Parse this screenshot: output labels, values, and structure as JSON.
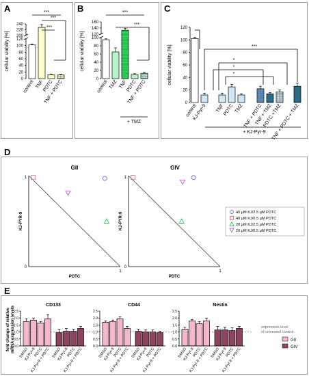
{
  "colors": {
    "panel_border": "#9a9a9a",
    "axis": "#000000",
    "control": "#ffffff",
    "tnf": "#ffffcc",
    "pdtc": "#ffffcc",
    "tnf_pdtc": "#ffffcc",
    "tmz": "#b7f5c8",
    "tnf_tmz": "#2fd65a",
    "pdtc_tmz": "#b7f5c8",
    "tnf_pdtc_tmz": "#b7f5c8",
    "kj_light": "#cfe6f5",
    "kj_mid": "#5b9bd5",
    "kj_dark": "#2c6b86",
    "gii": "#f4b7cc",
    "giv": "#8e4460",
    "scatter_40_2_5": "#6b6bd6",
    "scatter_40_0_5": "#ef6b6b",
    "scatter_20_2_5": "#2bc45a",
    "scatter_20_0_5": "#c85ad6"
  },
  "panel_labels": {
    "A": "A",
    "B": "B",
    "C": "C",
    "D": "D",
    "E": "E"
  },
  "ylabel_viability": "cellular viability [%]",
  "panel_b_group": "+ TMZ",
  "panel_c_group": "+ KJ-Pyr-9",
  "sig": {
    "three": "***",
    "one": "*"
  },
  "chart_data": [
    {
      "id": "A",
      "type": "bar",
      "ylabel": "cellular viability [%]",
      "axis_break": true,
      "yticks_low": [
        "0",
        "20",
        "40",
        "60",
        "80",
        "100",
        "120"
      ],
      "yticks_high": [
        "200",
        "220",
        "240"
      ],
      "categories": [
        "control",
        "TNF",
        "PDTC",
        "TNF + PDTC"
      ],
      "values": [
        102,
        228,
        12,
        11
      ],
      "errors": [
        3,
        10,
        2,
        2
      ],
      "significance": [
        "***",
        "***",
        "***"
      ]
    },
    {
      "id": "B",
      "type": "bar",
      "ylabel": "cellular viability [%]",
      "axis_break": true,
      "yticks_low": [
        "0",
        "20",
        "40",
        "60",
        "80",
        "100"
      ],
      "yticks_high": [
        "120",
        "140",
        "160"
      ],
      "categories": [
        "control",
        "TMZ",
        "TNF",
        "PDTC",
        "TNF + PDTC"
      ],
      "group_label": "+ TMZ",
      "values": [
        102,
        65,
        133,
        10,
        13
      ],
      "errors": [
        3,
        10,
        6,
        2,
        2
      ],
      "significance": [
        "***",
        "***"
      ]
    },
    {
      "id": "C",
      "type": "bar",
      "ylabel": "cellular viability [%]",
      "yticks": [
        "0",
        "20",
        "40",
        "60",
        "80",
        "100",
        "120"
      ],
      "ylim": [
        0,
        120
      ],
      "categories": [
        "control",
        "KJ-Pyr-9",
        "TNF",
        "PDTC",
        "TMZ",
        "TNF + PDTC",
        "TNF + TMZ",
        "PDTC +TMZ",
        "TNF + PDTC + TMZ"
      ],
      "group_label": "+ KJ-Pyr-9",
      "values": [
        102,
        12,
        12,
        25,
        12,
        22,
        14,
        17,
        26
      ],
      "errors": [
        2,
        3,
        3,
        4,
        2,
        4,
        2,
        3,
        5
      ],
      "significance": [
        "*",
        "*",
        "*",
        "***"
      ]
    },
    {
      "id": "D",
      "type": "scatter",
      "plots": [
        {
          "title": "GII",
          "xlabel": "PDTC",
          "ylabel": "KJ-PYR-9",
          "xlim": [
            0,
            1
          ],
          "ylim": [
            0,
            1
          ],
          "points": [
            {
              "x": 0.83,
              "y": 0.97
            },
            {
              "x": 0.05,
              "y": 0.98
            },
            {
              "x": 0.85,
              "y": 0.5
            },
            {
              "x": 0.43,
              "y": 0.81
            }
          ]
        },
        {
          "title": "GIV",
          "xlabel": "PDTC",
          "ylabel": "KJ-PYR-9",
          "xlim": [
            0,
            1
          ],
          "ylim": [
            0,
            1
          ],
          "points": [
            {
              "x": 0.71,
              "y": 0.98
            },
            {
              "x": 0.05,
              "y": 0.98
            },
            {
              "x": 0.58,
              "y": 0.5
            },
            {
              "x": 0.59,
              "y": 0.93
            }
          ]
        }
      ],
      "tick_labels": {
        "zero": "0",
        "one": "1"
      },
      "legend": [
        "40 µM KJ/2.5 µM PDTC",
        "40 µM KJ/0.5 µM PDTC",
        "20 µM KJ/2.5 µM PDTC",
        "20 µM KJ/0.5 µM PDTC"
      ]
    },
    {
      "id": "E",
      "type": "bar",
      "ylabel_line1": "fold change of relative",
      "ylabel_line2": "mRNA expression levels",
      "yticks": [
        "0.0",
        "0.5",
        "1.0",
        "1.5",
        "2.0",
        "2.5"
      ],
      "ylim": [
        0,
        2.5
      ],
      "reference_label_line1": "expression level",
      "reference_label_line2": "of untreated control",
      "legend": [
        "GII",
        "GIV"
      ],
      "categories": [
        "DMSO",
        "KJ-Pyr-9",
        "PDTC",
        "KJ-Pyr-9 + PDTC"
      ],
      "genes": [
        {
          "name": "CD133",
          "gii": [
            1.75,
            1.85,
            1.65,
            1.95
          ],
          "giv": [
            0.95,
            1.05,
            1.05,
            1.25
          ],
          "gii_err": [
            0.2,
            0.15,
            0.1,
            0.3
          ],
          "giv_err": [
            0.25,
            0.2,
            0.15,
            0.15
          ]
        },
        {
          "name": "CD44",
          "gii": [
            1.7,
            1.75,
            1.95,
            1.25
          ],
          "giv": [
            1.05,
            1.0,
            1.0,
            0.95
          ],
          "gii_err": [
            0.1,
            0.1,
            0.15,
            0.15
          ],
          "giv_err": [
            0.15,
            0.15,
            0.15,
            0.1
          ]
        },
        {
          "name": "Nestin",
          "gii": [
            1.2,
            1.8,
            1.6,
            1.8
          ],
          "giv": [
            1.15,
            1.15,
            1.1,
            1.25
          ],
          "gii_err": [
            0.15,
            0.1,
            0.15,
            0.2
          ],
          "giv_err": [
            0.25,
            0.2,
            0.2,
            0.15
          ]
        }
      ]
    }
  ]
}
